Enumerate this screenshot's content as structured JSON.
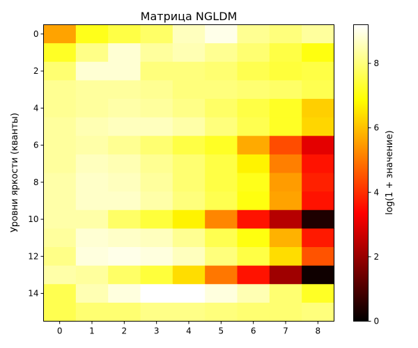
{
  "chart_data": {
    "type": "heatmap",
    "title": "Матрица NGLDM",
    "xlabel": "",
    "ylabel": "Уровни яркости (кванты)",
    "x_categories": [
      0,
      1,
      2,
      3,
      4,
      5,
      6,
      7,
      8
    ],
    "y_categories": [
      0,
      1,
      2,
      3,
      4,
      5,
      6,
      7,
      8,
      9,
      10,
      11,
      12,
      13,
      14,
      15
    ],
    "x_ticks": [
      0,
      1,
      2,
      3,
      4,
      5,
      6,
      7,
      8
    ],
    "y_ticks": [
      0,
      2,
      4,
      6,
      8,
      10,
      12,
      14
    ],
    "colorbar": {
      "label": "log(1 + значение)",
      "range": [
        0,
        9.2
      ],
      "ticks": [
        0,
        2,
        4,
        6,
        8
      ],
      "colormap": "hot"
    },
    "values": [
      [
        5.6,
        7.1,
        7.5,
        7.8,
        8.6,
        9.0,
        8.2,
        8.0,
        8.3
      ],
      [
        7.2,
        8.1,
        8.8,
        8.3,
        8.5,
        8.2,
        7.9,
        7.5,
        7.0
      ],
      [
        7.9,
        8.8,
        8.8,
        8.0,
        8.0,
        7.9,
        7.6,
        7.4,
        7.5
      ],
      [
        8.2,
        8.3,
        8.3,
        8.2,
        8.0,
        8.0,
        7.9,
        7.8,
        7.6
      ],
      [
        8.2,
        8.3,
        8.4,
        8.3,
        8.1,
        7.8,
        7.5,
        7.2,
        6.2
      ],
      [
        8.3,
        8.5,
        8.6,
        8.6,
        8.4,
        8.0,
        7.6,
        7.2,
        6.3
      ],
      [
        8.3,
        8.4,
        8.2,
        7.9,
        7.5,
        7.2,
        5.7,
        4.4,
        3.0
      ],
      [
        8.3,
        8.6,
        8.5,
        8.2,
        7.9,
        7.5,
        6.7,
        5.1,
        3.6
      ],
      [
        8.4,
        8.7,
        8.6,
        8.3,
        7.9,
        7.5,
        7.1,
        5.5,
        3.8
      ],
      [
        8.4,
        8.7,
        8.7,
        8.4,
        8.0,
        7.6,
        7.0,
        5.6,
        3.6
      ],
      [
        8.4,
        8.4,
        7.8,
        7.4,
        6.7,
        5.2,
        3.6,
        2.4,
        0.4
      ],
      [
        8.3,
        8.8,
        8.7,
        8.6,
        8.2,
        7.6,
        7.0,
        5.8,
        3.7
      ],
      [
        8.1,
        8.9,
        9.0,
        8.9,
        8.6,
        8.0,
        7.5,
        6.4,
        4.5
      ],
      [
        8.4,
        8.3,
        7.8,
        7.4,
        6.4,
        5.0,
        3.6,
        2.1,
        0.2
      ],
      [
        7.6,
        8.5,
        8.9,
        9.2,
        9.2,
        8.9,
        8.5,
        7.9,
        7.2
      ],
      [
        7.6,
        7.9,
        7.9,
        8.1,
        8.1,
        8.0,
        7.9,
        7.9,
        8.0
      ]
    ]
  }
}
